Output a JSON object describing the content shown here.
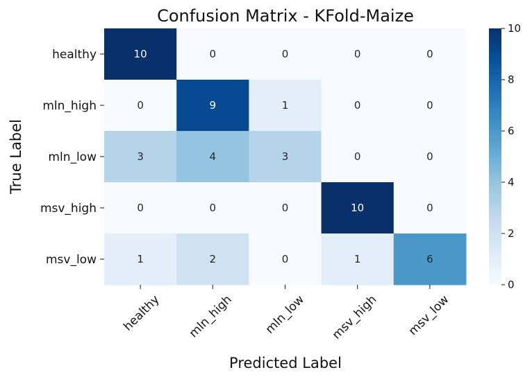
{
  "chart_data": {
    "type": "heatmap",
    "title": "Confusion Matrix - KFold-Maize",
    "xlabel": "Predicted Label",
    "ylabel": "True Label",
    "x_categories": [
      "healthy",
      "mln_high",
      "mln_low",
      "msv_high",
      "msv_low"
    ],
    "y_categories": [
      "healthy",
      "mln_high",
      "mln_low",
      "msv_high",
      "msv_low"
    ],
    "values": [
      [
        10,
        0,
        0,
        0,
        0
      ],
      [
        0,
        9,
        1,
        0,
        0
      ],
      [
        3,
        4,
        3,
        0,
        0
      ],
      [
        0,
        0,
        0,
        10,
        0
      ],
      [
        1,
        2,
        0,
        1,
        6
      ]
    ],
    "colorbar": {
      "min": 0,
      "max": 10,
      "ticks": [
        0,
        2,
        4,
        6,
        8,
        10
      ]
    },
    "colormap": "Blues",
    "colors": {
      "low": "#f7fbff",
      "high": "#08306b",
      "text_dark": "#262626",
      "text_light": "#ffffff"
    }
  }
}
